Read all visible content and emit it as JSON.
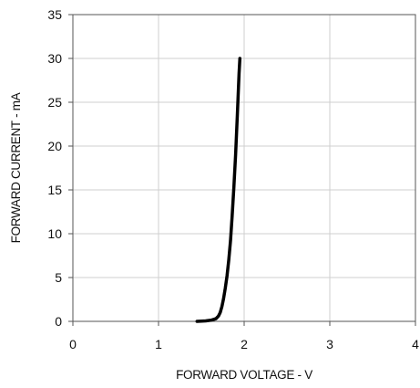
{
  "chart_data": {
    "type": "line",
    "title": "",
    "xlabel": "FORWARD VOLTAGE - V",
    "ylabel": "FORWARD CURRENT - mA",
    "xlim": [
      0,
      4
    ],
    "ylim": [
      0,
      35
    ],
    "xticks": [
      0,
      1,
      2,
      3,
      4
    ],
    "yticks": [
      0,
      5,
      10,
      15,
      20,
      25,
      30,
      35
    ],
    "grid": true,
    "legend": "none",
    "series": [
      {
        "color": "#000000",
        "x": [
          1.45,
          1.55,
          1.62,
          1.67,
          1.7,
          1.72,
          1.74,
          1.76,
          1.78,
          1.8,
          1.82,
          1.84,
          1.86,
          1.88,
          1.9,
          1.92,
          1.94,
          1.95
        ],
        "y": [
          0.0,
          0.05,
          0.15,
          0.3,
          0.6,
          1.0,
          1.7,
          2.6,
          3.8,
          5.2,
          7.0,
          9.2,
          12.0,
          15.3,
          19.0,
          23.5,
          28.3,
          30.0
        ]
      }
    ]
  }
}
